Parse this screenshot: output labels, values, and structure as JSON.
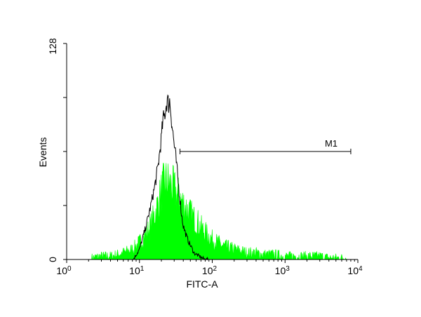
{
  "chart_data": {
    "type": "histogram",
    "title": "",
    "xlabel": "FITC-A",
    "ylabel": "Events",
    "x_scale": "log",
    "xlim": [
      1,
      10000
    ],
    "ylim": [
      0,
      128
    ],
    "x_tick_labels": [
      {
        "base": "10",
        "exp": "0",
        "value": 1
      },
      {
        "base": "10",
        "exp": "1",
        "value": 10
      },
      {
        "base": "10",
        "exp": "2",
        "value": 100
      },
      {
        "base": "10",
        "exp": "3",
        "value": 1000
      },
      {
        "base": "10",
        "exp": "4",
        "value": 10000
      }
    ],
    "y_tick_labels": [
      "0",
      "128"
    ],
    "y_minor_ticks": [
      32,
      64,
      96
    ],
    "grid": false,
    "legend": "none",
    "series": [
      {
        "style": "outline",
        "color": "#000000",
        "x": [
          8.2,
          10,
          12,
          14,
          16,
          18,
          20,
          21,
          22,
          23,
          24,
          25,
          26,
          27,
          28,
          30,
          32,
          34,
          36,
          38,
          40,
          44,
          48,
          52,
          56,
          60,
          66,
          72,
          80,
          90
        ],
        "y": [
          0,
          6,
          18,
          30,
          42,
          55,
          72,
          82,
          85,
          90,
          95,
          92,
          94,
          88,
          80,
          68,
          58,
          46,
          36,
          26,
          20,
          14,
          10,
          7,
          4,
          3,
          2,
          1,
          0,
          0
        ]
      },
      {
        "style": "filled-noisy",
        "color": "#00ff00",
        "x": [
          2.2,
          3,
          4,
          5,
          6,
          7,
          8,
          9,
          10,
          12,
          14,
          16,
          18,
          20,
          22,
          24,
          26,
          28,
          30,
          33,
          36,
          40,
          45,
          50,
          56,
          63,
          70,
          80,
          90,
          100,
          120,
          140,
          170,
          200,
          250,
          300,
          400,
          500,
          700,
          1000,
          1500,
          2000,
          3000,
          4000,
          5000,
          7000
        ],
        "y": [
          1,
          2,
          2,
          3,
          4,
          5,
          6,
          8,
          10,
          14,
          19,
          26,
          33,
          40,
          45,
          46,
          44,
          43,
          41,
          38,
          36,
          33,
          30,
          27,
          24,
          22,
          19,
          16,
          14,
          12,
          10,
          8,
          7,
          6,
          5,
          4,
          4,
          3,
          3,
          2,
          2,
          2,
          2,
          1,
          1,
          1
        ]
      }
    ],
    "marker": {
      "label": "M1",
      "x_start": 36,
      "x_end": 8000,
      "y": 64
    }
  }
}
